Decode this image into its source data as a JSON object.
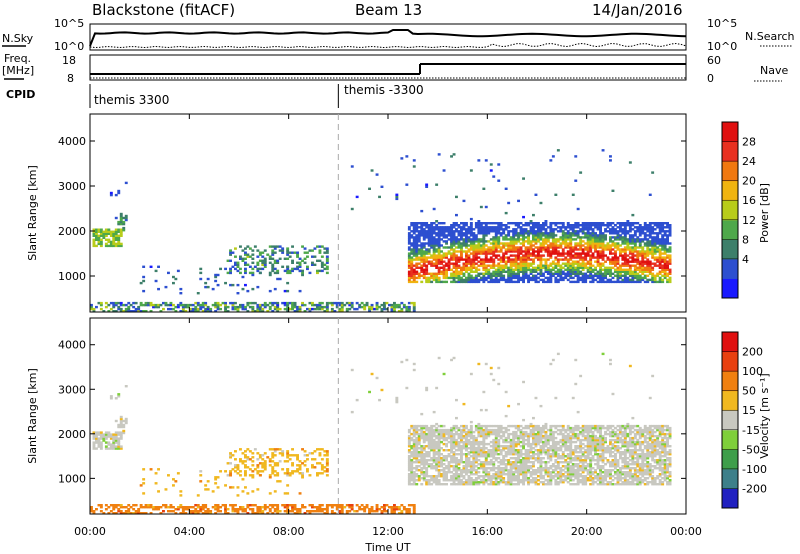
{
  "header": {
    "station": "Blackstone (fitACF)",
    "beam": "Beam 13",
    "date": "14/Jan/2016"
  },
  "side_labels": {
    "nsky": "N.Sky",
    "freq_line1": "Freq.",
    "freq_line2": "[MHz]",
    "cpid": "CPID",
    "nsearch": "N.Search",
    "nave": "Nave"
  },
  "noise_panel": {
    "left_ticks": [
      "10^5",
      "10^0"
    ],
    "right_ticks": [
      "10^5",
      "10^0"
    ]
  },
  "freq_panel": {
    "left_ticks": [
      "18",
      "8"
    ],
    "right_ticks": [
      "60",
      "0"
    ]
  },
  "cpid_panel": {
    "labels": [
      "themis 3300",
      "themis -3300"
    ],
    "change_hour": 10.0
  },
  "chart_data": [
    {
      "type": "heatmap",
      "name": "power-panel",
      "ylabel": "Slant Range [km]",
      "y_ticks": [
        1000,
        2000,
        3000,
        4000
      ],
      "ylim": [
        200,
        4600
      ],
      "x_ticks": [
        "00:00",
        "04:00",
        "08:00",
        "12:00",
        "16:00",
        "20:00",
        "00:00"
      ],
      "xlim_hours": [
        0,
        24
      ],
      "colorbar": {
        "label": "Power [dB]",
        "ticks": [
          "28",
          "24",
          "20",
          "16",
          "12",
          "8",
          "4"
        ],
        "colors": [
          "#1a1aff",
          "#2d4fd0",
          "#3d7f6a",
          "#4ea84a",
          "#b8cc1a",
          "#f0b410",
          "#f07810",
          "#e83020",
          "#e01010"
        ]
      }
    },
    {
      "type": "heatmap",
      "name": "velocity-panel",
      "ylabel": "Slant Range [km]",
      "y_ticks": [
        1000,
        2000,
        3000,
        4000
      ],
      "ylim": [
        200,
        4600
      ],
      "x_ticks": [
        "00:00",
        "04:00",
        "08:00",
        "12:00",
        "16:00",
        "20:00",
        "00:00"
      ],
      "xlabel": "Time UT",
      "xlim_hours": [
        0,
        24
      ],
      "colorbar": {
        "label": "Velocity [m s⁻¹]",
        "ticks": [
          "200",
          "100",
          "50",
          "15",
          "-15",
          "-50",
          "-100",
          "-200"
        ],
        "colors": [
          "#2020c0",
          "#3d7f8a",
          "#3e9e4a",
          "#7fcf3a",
          "#c8c8c0",
          "#f0b820",
          "#f08010",
          "#e84010",
          "#e01010"
        ]
      }
    }
  ]
}
